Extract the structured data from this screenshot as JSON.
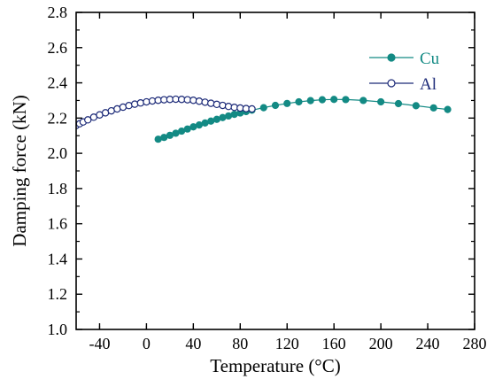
{
  "chart_data": {
    "type": "line",
    "xlabel": "Temperature (°C)",
    "ylabel": "Damping force (kN)",
    "xlim": [
      -60,
      280
    ],
    "ylim": [
      1.0,
      2.8
    ],
    "xticks": [
      -40,
      0,
      40,
      80,
      120,
      160,
      200,
      240,
      280
    ],
    "yticks": [
      1.0,
      1.2,
      1.4,
      1.6,
      1.8,
      2.0,
      2.2,
      2.4,
      2.6,
      2.8
    ],
    "xtick_labels": [
      "-40",
      "0",
      "40",
      "80",
      "120",
      "160",
      "200",
      "240",
      "280"
    ],
    "ytick_labels": [
      "1.0",
      "1.2",
      "1.4",
      "1.6",
      "1.8",
      "2.0",
      "2.2",
      "2.4",
      "2.6",
      "2.8"
    ],
    "grid": false,
    "legend_position": "top-right",
    "series": [
      {
        "name": "Cu",
        "color": "#138a84",
        "marker": "filled-circle",
        "line": "solid",
        "x": [
          10,
          15,
          20,
          25,
          30,
          35,
          40,
          45,
          50,
          55,
          60,
          65,
          70,
          75,
          80,
          85,
          90,
          100,
          110,
          120,
          130,
          140,
          150,
          160,
          170,
          185,
          200,
          215,
          230,
          245,
          257
        ],
        "y": [
          2.08,
          2.09,
          2.102,
          2.114,
          2.126,
          2.138,
          2.15,
          2.161,
          2.172,
          2.183,
          2.193,
          2.203,
          2.212,
          2.221,
          2.229,
          2.237,
          2.245,
          2.259,
          2.272,
          2.283,
          2.292,
          2.299,
          2.304,
          2.306,
          2.305,
          2.3,
          2.292,
          2.282,
          2.27,
          2.258,
          2.249
        ]
      },
      {
        "name": "Al",
        "color": "#1c2a78",
        "marker": "open-circle",
        "line": "solid",
        "x": [
          -60,
          -57,
          -54,
          -50,
          -45,
          -40,
          -35,
          -30,
          -25,
          -20,
          -15,
          -10,
          -5,
          0,
          5,
          10,
          15,
          20,
          25,
          30,
          35,
          40,
          45,
          50,
          55,
          60,
          65,
          70,
          75,
          80,
          85,
          90
        ],
        "y": [
          2.158,
          2.168,
          2.178,
          2.19,
          2.205,
          2.218,
          2.23,
          2.241,
          2.252,
          2.262,
          2.271,
          2.279,
          2.286,
          2.292,
          2.297,
          2.301,
          2.304,
          2.306,
          2.307,
          2.306,
          2.304,
          2.301,
          2.296,
          2.29,
          2.284,
          2.278,
          2.272,
          2.266,
          2.261,
          2.257,
          2.254,
          2.252
        ]
      }
    ]
  }
}
